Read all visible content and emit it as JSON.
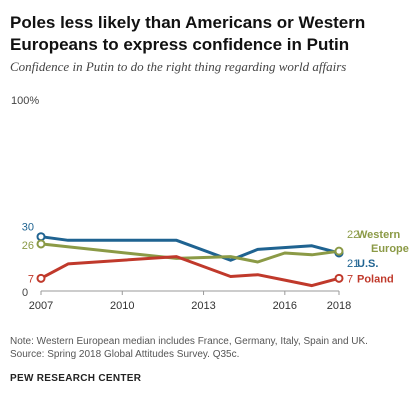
{
  "title_line1": "Poles less likely than Americans or Western",
  "title_line2": "Europeans to express confidence in Putin",
  "subtitle": "Confidence in Putin to do the right thing regarding world affairs",
  "note_line1": "Note: Western European median includes France, Germany, Italy, Spain and UK.",
  "note_line2": "Source: Spring 2018 Global Attitudes Survey. Q35c.",
  "brand": "PEW RESEARCH CENTER",
  "chart_data": {
    "type": "line",
    "title": "Poles less likely than Americans or Western Europeans to express confidence in Putin",
    "subtitle": "Confidence in Putin to do the right thing regarding world affairs",
    "xlabel": "",
    "ylabel": "",
    "xlim": [
      2007,
      2018
    ],
    "ylim": [
      0,
      100
    ],
    "y_top_label": "100%",
    "y_bottom_label": "0",
    "x_ticks": [
      2007,
      2010,
      2013,
      2016,
      2018
    ],
    "grid": false,
    "legend_placement": "direct labels at line ends (right)",
    "series": [
      {
        "name": "U.S.",
        "label": "U.S.",
        "color": "#1f6391",
        "x": [
          2007,
          2008,
          2009,
          2010,
          2011,
          2012,
          2014,
          2015,
          2017,
          2018
        ],
        "y": [
          30,
          28,
          28,
          28,
          28,
          28,
          17,
          23,
          25,
          21
        ],
        "start_label": "30",
        "end_label": "21"
      },
      {
        "name": "Western Europe",
        "label_line1": "Western",
        "label_line2": "Europe",
        "color": "#8b9a46",
        "x": [
          2007,
          2012,
          2014,
          2015,
          2016,
          2017,
          2018
        ],
        "y": [
          26,
          18,
          19,
          16,
          21,
          20,
          22
        ],
        "start_label": "26",
        "end_label": "22"
      },
      {
        "name": "Poland",
        "label": "Poland",
        "color": "#c0392b",
        "x": [
          2007,
          2008,
          2012,
          2014,
          2015,
          2016,
          2017,
          2018
        ],
        "y": [
          7,
          15,
          19,
          8,
          9,
          6,
          3,
          7
        ],
        "start_label": "7",
        "end_label": "7"
      }
    ]
  }
}
